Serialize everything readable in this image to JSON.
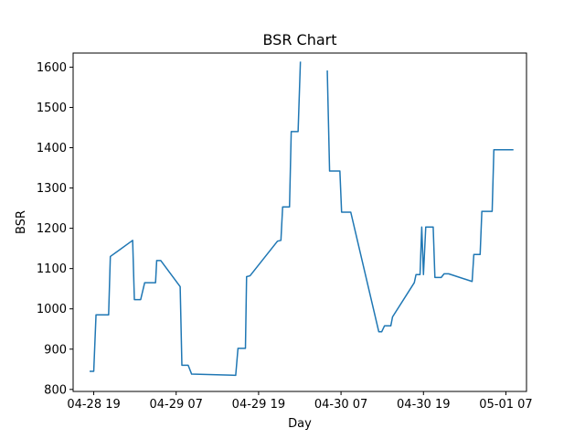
{
  "chart_data": {
    "type": "line",
    "title": "BSR Chart",
    "xlabel": "Day",
    "ylabel": "BSR",
    "grid": false,
    "legend": "none",
    "xlim": [
      "2023-04-28 16:00",
      "2023-05-01 10:00"
    ],
    "ylim": [
      795,
      1635
    ],
    "x_ticks": [
      {
        "value": "2023-04-28 19:00",
        "label": "04-28 19"
      },
      {
        "value": "2023-04-29 07:00",
        "label": "04-29 07"
      },
      {
        "value": "2023-04-29 19:00",
        "label": "04-29 19"
      },
      {
        "value": "2023-04-30 07:00",
        "label": "04-30 07"
      },
      {
        "value": "2023-04-30 19:00",
        "label": "04-30 19"
      },
      {
        "value": "2023-05-01 07:00",
        "label": "05-01 07"
      }
    ],
    "y_ticks": [
      800,
      900,
      1000,
      1100,
      1200,
      1300,
      1400,
      1500,
      1600
    ],
    "series": [
      {
        "color": "#1f77b4",
        "segments": [
          [
            {
              "x": "2023-04-28 18:30",
              "y": 845
            },
            {
              "x": "2023-04-28 19:00",
              "y": 845
            },
            {
              "x": "2023-04-28 19:20",
              "y": 985
            },
            {
              "x": "2023-04-28 21:10",
              "y": 985
            },
            {
              "x": "2023-04-28 21:25",
              "y": 1130
            },
            {
              "x": "2023-04-29 00:40",
              "y": 1170
            },
            {
              "x": "2023-04-29 00:55",
              "y": 1023
            },
            {
              "x": "2023-04-29 01:50",
              "y": 1023
            },
            {
              "x": "2023-04-29 02:25",
              "y": 1065
            },
            {
              "x": "2023-04-29 04:00",
              "y": 1065
            },
            {
              "x": "2023-04-29 04:10",
              "y": 1120
            },
            {
              "x": "2023-04-29 04:45",
              "y": 1120
            },
            {
              "x": "2023-04-29 07:35",
              "y": 1055
            },
            {
              "x": "2023-04-29 07:50",
              "y": 860
            },
            {
              "x": "2023-04-29 08:45",
              "y": 860
            },
            {
              "x": "2023-04-29 09:15",
              "y": 838
            },
            {
              "x": "2023-04-29 15:40",
              "y": 835
            },
            {
              "x": "2023-04-29 16:00",
              "y": 902
            },
            {
              "x": "2023-04-29 17:05",
              "y": 902
            },
            {
              "x": "2023-04-29 17:15",
              "y": 1080
            },
            {
              "x": "2023-04-29 17:45",
              "y": 1082
            },
            {
              "x": "2023-04-29 21:45",
              "y": 1168
            },
            {
              "x": "2023-04-29 22:15",
              "y": 1170
            },
            {
              "x": "2023-04-29 22:30",
              "y": 1253
            },
            {
              "x": "2023-04-29 23:30",
              "y": 1253
            },
            {
              "x": "2023-04-29 23:45",
              "y": 1440
            },
            {
              "x": "2023-04-30 00:45",
              "y": 1440
            },
            {
              "x": "2023-04-30 01:05",
              "y": 1612
            }
          ],
          [
            {
              "x": "2023-04-30 05:00",
              "y": 1590
            },
            {
              "x": "2023-04-30 05:20",
              "y": 1342
            },
            {
              "x": "2023-04-30 06:50",
              "y": 1342
            },
            {
              "x": "2023-04-30 07:05",
              "y": 1240
            },
            {
              "x": "2023-04-30 08:25",
              "y": 1240
            },
            {
              "x": "2023-04-30 12:30",
              "y": 943
            },
            {
              "x": "2023-04-30 12:55",
              "y": 943
            },
            {
              "x": "2023-04-30 13:20",
              "y": 958
            },
            {
              "x": "2023-04-30 14:15",
              "y": 958
            },
            {
              "x": "2023-04-30 14:30",
              "y": 980
            },
            {
              "x": "2023-04-30 17:40",
              "y": 1065
            },
            {
              "x": "2023-04-30 17:55",
              "y": 1085
            },
            {
              "x": "2023-04-30 18:30",
              "y": 1085
            },
            {
              "x": "2023-04-30 18:45",
              "y": 1203
            },
            {
              "x": "2023-04-30 19:00",
              "y": 1085
            },
            {
              "x": "2023-04-30 19:20",
              "y": 1203
            },
            {
              "x": "2023-04-30 20:25",
              "y": 1203
            },
            {
              "x": "2023-04-30 20:40",
              "y": 1078
            },
            {
              "x": "2023-04-30 21:35",
              "y": 1078
            },
            {
              "x": "2023-04-30 22:00",
              "y": 1087
            },
            {
              "x": "2023-04-30 22:40",
              "y": 1087
            },
            {
              "x": "2023-05-01 02:05",
              "y": 1068
            },
            {
              "x": "2023-05-01 02:20",
              "y": 1135
            },
            {
              "x": "2023-05-01 03:15",
              "y": 1135
            },
            {
              "x": "2023-05-01 03:30",
              "y": 1242
            },
            {
              "x": "2023-05-01 05:00",
              "y": 1242
            },
            {
              "x": "2023-05-01 05:15",
              "y": 1395
            },
            {
              "x": "2023-05-01 08:00",
              "y": 1395
            }
          ]
        ]
      }
    ]
  }
}
